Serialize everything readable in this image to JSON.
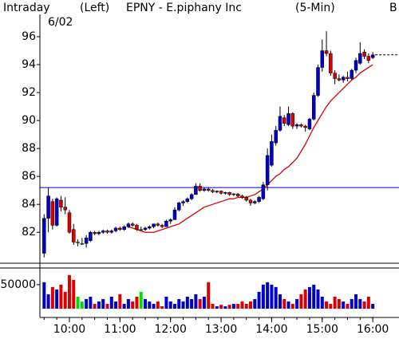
{
  "chart_data": {
    "type": "candlestick",
    "mode": "Intraday",
    "axis_side": "(Left)",
    "title": "EPNY - E.piphany Inc",
    "interval": "(5-Min)",
    "date": "6/02",
    "corner": "B",
    "x": [
      "9:30",
      "9:35",
      "9:40",
      "9:45",
      "9:50",
      "9:55",
      "10:00",
      "10:05",
      "10:10",
      "10:15",
      "10:20",
      "10:25",
      "10:30",
      "10:35",
      "10:40",
      "10:45",
      "10:50",
      "10:55",
      "11:00",
      "11:05",
      "11:10",
      "11:15",
      "11:20",
      "11:25",
      "11:30",
      "11:35",
      "11:40",
      "11:45",
      "11:50",
      "11:55",
      "12:00",
      "12:05",
      "12:10",
      "12:15",
      "12:20",
      "12:25",
      "12:30",
      "12:35",
      "12:40",
      "12:45",
      "12:50",
      "12:55",
      "13:00",
      "13:05",
      "13:10",
      "13:15",
      "13:20",
      "13:25",
      "13:30",
      "13:35",
      "13:40",
      "13:45",
      "13:50",
      "13:55",
      "14:00",
      "14:05",
      "14:10",
      "14:15",
      "14:20",
      "14:25",
      "14:30",
      "14:35",
      "14:40",
      "14:45",
      "14:50",
      "14:55",
      "15:00",
      "15:05",
      "15:10",
      "15:15",
      "15:20",
      "15:25",
      "15:30",
      "15:35",
      "15:40",
      "15:45",
      "15:50",
      "15:55",
      "16:00"
    ],
    "open": [
      80.5,
      83.0,
      84.2,
      82.5,
      84.3,
      83.8,
      83.4,
      82.2,
      81.3,
      81.2,
      81.2,
      81.4,
      82.0,
      81.9,
      82.0,
      82.1,
      82.0,
      82.1,
      82.3,
      82.2,
      82.4,
      82.6,
      82.5,
      82.2,
      82.2,
      82.3,
      82.4,
      82.6,
      82.5,
      82.4,
      82.8,
      82.9,
      83.6,
      84.1,
      84.2,
      84.4,
      84.7,
      85.3,
      85.0,
      85.1,
      85.0,
      84.9,
      84.95,
      84.8,
      84.85,
      84.7,
      84.75,
      84.6,
      84.5,
      84.3,
      84.1,
      84.2,
      84.4,
      85.4,
      86.8,
      88.4,
      89.3,
      90.2,
      89.7,
      90.5,
      89.6,
      89.7,
      89.6,
      89.4,
      90.1,
      91.8,
      93.8,
      95.0,
      94.8,
      93.4,
      93.0,
      92.9,
      93.1,
      93.0,
      93.6,
      94.1,
      94.9,
      94.6,
      94.5
    ],
    "high": [
      83.3,
      85.2,
      84.4,
      84.5,
      84.6,
      84.5,
      83.6,
      82.6,
      81.5,
      81.6,
      81.8,
      82.1,
      82.1,
      82.1,
      82.2,
      82.2,
      82.2,
      82.4,
      82.4,
      82.5,
      82.7,
      82.7,
      82.6,
      82.4,
      82.4,
      82.5,
      82.6,
      82.7,
      82.6,
      82.9,
      83.0,
      83.8,
      84.2,
      84.3,
      84.5,
      84.8,
      85.5,
      85.5,
      85.2,
      85.2,
      85.1,
      85.0,
      85.0,
      84.9,
      84.9,
      84.8,
      84.8,
      84.7,
      84.6,
      84.4,
      84.3,
      84.6,
      85.6,
      88.0,
      89.0,
      89.6,
      91.0,
      90.4,
      91.0,
      90.6,
      89.8,
      89.8,
      89.7,
      90.2,
      92.0,
      94.0,
      95.8,
      96.4,
      95.0,
      93.6,
      93.3,
      93.2,
      93.5,
      93.7,
      94.5,
      95.6,
      95.1,
      94.8,
      94.9
    ],
    "low": [
      80.2,
      82.0,
      82.2,
      82.4,
      83.5,
      83.3,
      81.9,
      81.1,
      81.0,
      81.1,
      80.9,
      81.3,
      81.8,
      81.8,
      81.9,
      81.9,
      81.9,
      82.0,
      82.1,
      82.1,
      82.3,
      82.4,
      82.1,
      82.1,
      82.1,
      82.2,
      82.3,
      82.4,
      82.3,
      82.4,
      82.6,
      82.9,
      83.5,
      83.9,
      84.1,
      84.3,
      84.7,
      84.9,
      84.9,
      84.9,
      84.8,
      84.8,
      84.7,
      84.7,
      84.6,
      84.6,
      84.5,
      84.4,
      84.2,
      83.9,
      84.0,
      84.1,
      84.3,
      85.0,
      86.7,
      88.2,
      89.2,
      89.6,
      89.6,
      89.4,
      89.4,
      89.5,
      89.2,
      89.3,
      90.0,
      91.7,
      93.5,
      94.6,
      93.2,
      92.6,
      92.8,
      92.7,
      92.8,
      92.9,
      93.4,
      94.0,
      94.4,
      94.1,
      94.4
    ],
    "close": [
      83.0,
      84.6,
      82.5,
      84.4,
      83.8,
      83.6,
      82.0,
      81.3,
      81.3,
      81.2,
      81.6,
      82.0,
      81.9,
      82.0,
      82.1,
      82.0,
      82.1,
      82.3,
      82.2,
      82.4,
      82.6,
      82.5,
      82.2,
      82.2,
      82.3,
      82.4,
      82.6,
      82.5,
      82.4,
      82.8,
      82.9,
      83.6,
      84.1,
      84.2,
      84.4,
      84.7,
      85.3,
      85.0,
      85.1,
      85.0,
      84.9,
      84.95,
      84.8,
      84.85,
      84.7,
      84.75,
      84.6,
      84.5,
      84.3,
      84.1,
      84.2,
      84.5,
      85.4,
      87.5,
      88.5,
      89.3,
      90.3,
      89.8,
      90.5,
      89.6,
      89.7,
      89.6,
      89.5,
      90.1,
      91.8,
      93.8,
      95.0,
      94.8,
      93.4,
      93.0,
      92.9,
      93.1,
      93.0,
      93.6,
      94.3,
      94.8,
      94.6,
      94.3,
      94.7
    ],
    "volume": [
      55000,
      30000,
      45000,
      40000,
      50000,
      35000,
      70000,
      60000,
      25000,
      15000,
      20000,
      25000,
      10000,
      15000,
      20000,
      10000,
      25000,
      15000,
      30000,
      10000,
      20000,
      15000,
      25000,
      35000,
      20000,
      15000,
      10000,
      15000,
      5000,
      25000,
      15000,
      10000,
      20000,
      15000,
      25000,
      20000,
      30000,
      20000,
      25000,
      55000,
      10000,
      5000,
      8000,
      5000,
      8000,
      10000,
      10000,
      15000,
      10000,
      15000,
      20000,
      35000,
      50000,
      55000,
      50000,
      45000,
      30000,
      20000,
      15000,
      10000,
      20000,
      30000,
      40000,
      45000,
      50000,
      40000,
      25000,
      15000,
      10000,
      25000,
      20000,
      15000,
      10000,
      20000,
      30000,
      20000,
      15000,
      25000,
      10000
    ],
    "ma": [
      null,
      null,
      null,
      null,
      null,
      null,
      null,
      null,
      null,
      null,
      null,
      null,
      null,
      null,
      null,
      null,
      null,
      null,
      null,
      null,
      82.4,
      82.3,
      82.2,
      82.1,
      82.0,
      82.0,
      82.0,
      82.1,
      82.2,
      82.3,
      82.4,
      82.5,
      82.6,
      82.8,
      83.0,
      83.2,
      83.4,
      83.6,
      83.8,
      83.9,
      84.0,
      84.1,
      84.2,
      84.3,
      84.4,
      84.4,
      84.5,
      84.5,
      84.5,
      84.6,
      84.7,
      84.9,
      85.1,
      85.4,
      85.7,
      86.0,
      86.2,
      86.5,
      86.7,
      87.0,
      87.3,
      87.8,
      88.3,
      88.9,
      89.5,
      90.0,
      90.5,
      91.0,
      91.4,
      91.7,
      92.0,
      92.3,
      92.6,
      92.9,
      93.1,
      93.4,
      93.6,
      93.8,
      94.0
    ],
    "up_color": "#0000cc",
    "down_color": "#dd0000",
    "flat_color": "#00dd00",
    "ma_color": "#dd0000",
    "reference_line": {
      "value": 85.2,
      "color": "#0000cc"
    },
    "ylim": [
      79.9,
      97.6
    ],
    "yticks": [
      82,
      84,
      86,
      88,
      90,
      92,
      94,
      96
    ],
    "volume_ylim": [
      0,
      78000
    ],
    "volume_yticks": [
      50000
    ],
    "xticks": [
      "10:00",
      "11:00",
      "12:00",
      "13:00",
      "14:00",
      "15:00",
      "16:00"
    ]
  }
}
